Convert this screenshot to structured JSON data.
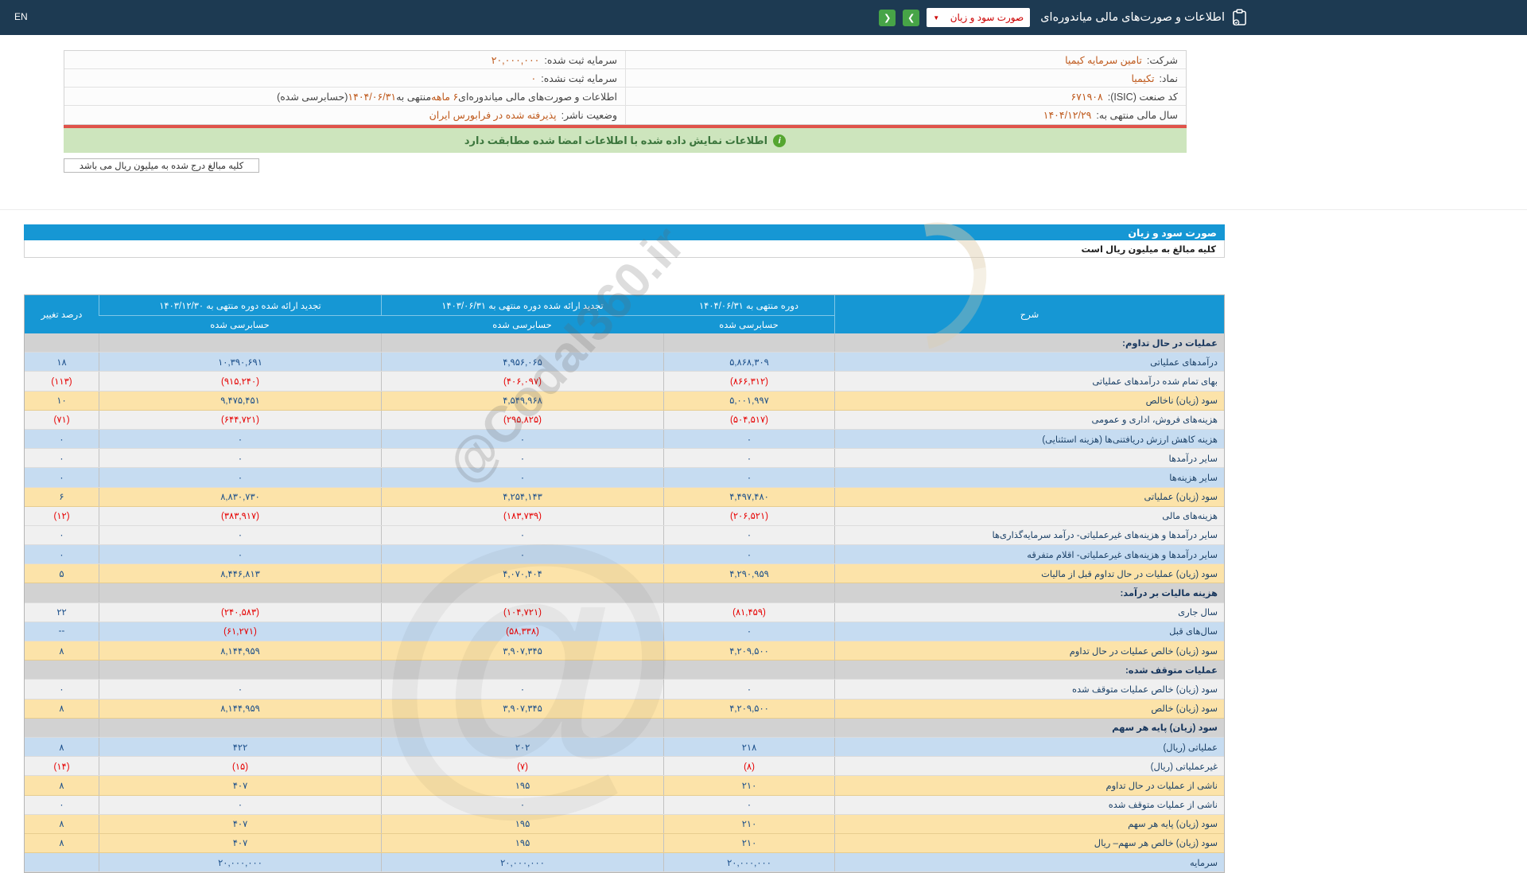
{
  "colors": {
    "topbar_bg": "#1d3a52",
    "accent_blue": "#1697d4",
    "green_button": "#47a447",
    "banner_bg": "#cde5bd",
    "banner_text": "#3c763d",
    "red_separator": "#e0534a",
    "orange_value": "#bf5a1d",
    "row_blue": "#c6dcf1",
    "row_gray": "#f0f0f0",
    "row_yellow": "#fce3a9",
    "section_gray": "#d2d2d2",
    "value_navy": "#1a4e8a",
    "negative_red": "#e60000"
  },
  "icons": {
    "dropdown_caret": "▼",
    "nav_right": "❯",
    "nav_left": "❮",
    "banner_info": "i"
  },
  "top_bar": {
    "en": "EN",
    "title": "اطلاعات و صورت‌های مالی میاندوره‌ای",
    "dropdown": "صورت سود و زیان"
  },
  "company": {
    "rows": [
      {
        "r_label": "شرکت:",
        "r_value": "تامین سرمایه کیمیا",
        "l_label": "سرمایه ثبت شده:",
        "l_value": "۲۰,۰۰۰,۰۰۰"
      },
      {
        "r_label": "نماد:",
        "r_value": "تکیمیا",
        "l_label": "سرمایه ثبت نشده:",
        "l_value": "۰"
      },
      {
        "r_label": "کد صنعت (ISIC):",
        "r_value": "۶۷۱۹۰۸"
      },
      {
        "r_label": "سال مالی منتهی به:",
        "r_value": "۱۴۰۴/۱۲/۲۹",
        "l_label": "وضعیت ناشر:",
        "l_value": "پذیرفته شده در فرابورس ایران"
      }
    ],
    "period_line": {
      "p1": "اطلاعات و صورت‌های مالی میاندوره‌ای ",
      "hl1": "۶ ماهه",
      "p2": "منتهی به ",
      "hl2": "۱۴۰۴/۰۶/۳۱",
      "p3": "(حسابرسی شده)"
    }
  },
  "banner": {
    "text": "اطلاعات نمایش داده شده با اطلاعات امضا شده مطابقت دارد"
  },
  "unit_note": "کلیه مبالغ درج شده به میلیون ریال می باشد",
  "statement": {
    "title": "صورت سود و زیان",
    "unit": "کلیه مبالغ به میلیون ریال است"
  },
  "table": {
    "headers": {
      "desc": "شرح",
      "c1": "دوره منتهی به ۱۴۰۴/۰۶/۳۱",
      "c2": "تجدید ارائه شده دوره منتهی به ۱۴۰۳/۰۶/۳۱",
      "c3": "تجدید ارائه شده دوره منتهی به ۱۴۰۳/۱۲/۳۰",
      "pct": "درصد تغییر",
      "audited": "حسابرسی شده"
    },
    "rows": [
      {
        "style": "section",
        "label": "عملیات در حال تداوم:",
        "v1": "",
        "v2": "",
        "v3": "",
        "pct": ""
      },
      {
        "style": "blue",
        "label": "درآمدهای عملیاتی",
        "v1": "۵,۸۶۸,۳۰۹",
        "v2": "۴,۹۵۶,۰۶۵",
        "v3": "۱۰,۳۹۰,۶۹۱",
        "pct": "۱۸"
      },
      {
        "style": "white",
        "label": "بهای تمام شده درآمدهای عملیاتی",
        "v1": "(۸۶۶,۳۱۲)",
        "v2": "(۴۰۶,۰۹۷)",
        "v3": "(۹۱۵,۲۴۰)",
        "pct": "(۱۱۳)"
      },
      {
        "style": "yellow",
        "label": "سود (زیان) ناخالص",
        "v1": "۵,۰۰۱,۹۹۷",
        "v2": "۴,۵۴۹,۹۶۸",
        "v3": "۹,۴۷۵,۴۵۱",
        "pct": "۱۰"
      },
      {
        "style": "white",
        "label": "هزینه‌های فروش، اداری و عمومی",
        "v1": "(۵۰۴,۵۱۷)",
        "v2": "(۲۹۵,۸۲۵)",
        "v3": "(۶۴۴,۷۲۱)",
        "pct": "(۷۱)"
      },
      {
        "style": "blue",
        "label": "هزینه کاهش ارزش دریافتنی‌ها (هزینه استثنایی)",
        "v1": "۰",
        "v2": "۰",
        "v3": "۰",
        "pct": "۰"
      },
      {
        "style": "white",
        "label": "سایر درآمدها",
        "v1": "۰",
        "v2": "۰",
        "v3": "۰",
        "pct": "۰"
      },
      {
        "style": "blue",
        "label": "سایر هزینه‌ها",
        "v1": "۰",
        "v2": "۰",
        "v3": "۰",
        "pct": "۰"
      },
      {
        "style": "yellow",
        "label": "سود (زیان) عملیاتی",
        "v1": "۴,۴۹۷,۴۸۰",
        "v2": "۴,۲۵۴,۱۴۳",
        "v3": "۸,۸۳۰,۷۳۰",
        "pct": "۶"
      },
      {
        "style": "white",
        "label": "هزینه‌های مالی",
        "v1": "(۲۰۶,۵۲۱)",
        "v2": "(۱۸۳,۷۳۹)",
        "v3": "(۳۸۳,۹۱۷)",
        "pct": "(۱۲)"
      },
      {
        "style": "white",
        "label": "سایر درآمدها و هزینه‌های غیرعملیاتی- درآمد سرمایه‌گذاری‌ها",
        "v1": "۰",
        "v2": "۰",
        "v3": "۰",
        "pct": "۰"
      },
      {
        "style": "blue",
        "label": "سایر درآمدها و هزینه‌های غیرعملیاتی- اقلام متفرقه",
        "v1": "۰",
        "v2": "۰",
        "v3": "۰",
        "pct": "۰"
      },
      {
        "style": "yellow",
        "label": "سود (زیان) عملیات در حال تداوم قبل از مالیات",
        "v1": "۴,۲۹۰,۹۵۹",
        "v2": "۴,۰۷۰,۴۰۴",
        "v3": "۸,۴۴۶,۸۱۳",
        "pct": "۵"
      },
      {
        "style": "section",
        "label": "هزینه مالیات بر درآمد:",
        "v1": "",
        "v2": "",
        "v3": "",
        "pct": ""
      },
      {
        "style": "white",
        "label": "سال جاری",
        "v1": "(۸۱,۴۵۹)",
        "v2": "(۱۰۴,۷۲۱)",
        "v3": "(۲۴۰,۵۸۳)",
        "pct": "۲۲"
      },
      {
        "style": "blue",
        "label": "سال‌های قبل",
        "v1": "۰",
        "v2": "(۵۸,۳۳۸)",
        "v3": "(۶۱,۲۷۱)",
        "pct": "--"
      },
      {
        "style": "yellow",
        "label": "سود (زیان) خالص عملیات در حال تداوم",
        "v1": "۴,۲۰۹,۵۰۰",
        "v2": "۳,۹۰۷,۳۴۵",
        "v3": "۸,۱۴۴,۹۵۹",
        "pct": "۸"
      },
      {
        "style": "section",
        "label": "عملیات متوقف شده:",
        "v1": "",
        "v2": "",
        "v3": "",
        "pct": ""
      },
      {
        "style": "white",
        "label": "سود (زیان) خالص عملیات متوقف شده",
        "v1": "۰",
        "v2": "۰",
        "v3": "۰",
        "pct": "۰"
      },
      {
        "style": "yellow",
        "label": "سود (زیان) خالص",
        "v1": "۴,۲۰۹,۵۰۰",
        "v2": "۳,۹۰۷,۳۴۵",
        "v3": "۸,۱۴۴,۹۵۹",
        "pct": "۸"
      },
      {
        "style": "section",
        "label": "سود (زیان) پایه هر سهم",
        "v1": "",
        "v2": "",
        "v3": "",
        "pct": ""
      },
      {
        "style": "blue",
        "label": "عملیاتی (ریال)",
        "v1": "۲۱۸",
        "v2": "۲۰۲",
        "v3": "۴۲۲",
        "pct": "۸"
      },
      {
        "style": "white",
        "label": "غیرعملیاتی (ریال)",
        "v1": "(۸)",
        "v2": "(۷)",
        "v3": "(۱۵)",
        "pct": "(۱۴)"
      },
      {
        "style": "yellow",
        "label": "ناشی از عملیات در حال تداوم",
        "v1": "۲۱۰",
        "v2": "۱۹۵",
        "v3": "۴۰۷",
        "pct": "۸"
      },
      {
        "style": "white",
        "label": "ناشی از عملیات متوقف شده",
        "v1": "۰",
        "v2": "۰",
        "v3": "۰",
        "pct": "۰"
      },
      {
        "style": "yellow",
        "label": "سود (زیان) پایه هر سهم",
        "v1": "۲۱۰",
        "v2": "۱۹۵",
        "v3": "۴۰۷",
        "pct": "۸"
      },
      {
        "style": "yellow",
        "label": "سود (زیان) خالص هر سهم– ریال",
        "v1": "۲۱۰",
        "v2": "۱۹۵",
        "v3": "۴۰۷",
        "pct": "۸"
      },
      {
        "style": "blue",
        "label": "سرمایه",
        "v1": "۲۰,۰۰۰,۰۰۰",
        "v2": "۲۰,۰۰۰,۰۰۰",
        "v3": "۲۰,۰۰۰,۰۰۰",
        "pct": ""
      }
    ]
  },
  "watermark": "@Codal360.ir"
}
